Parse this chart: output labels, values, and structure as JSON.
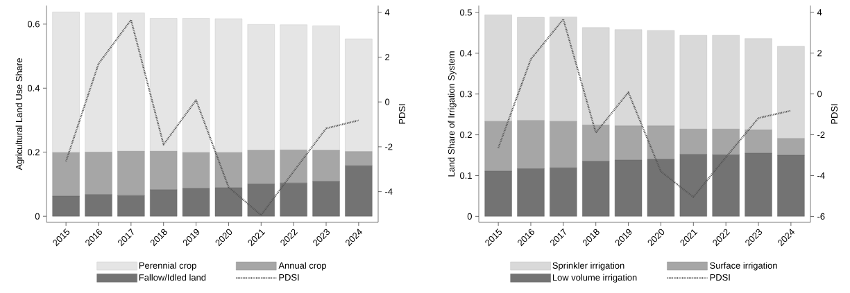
{
  "chart_data": [
    {
      "type": "bar",
      "stacked": true,
      "ylabel": "Agricultural Land Use Share",
      "y2label": "PDSI",
      "legend": "bottom",
      "categories": [
        "2015",
        "2016",
        "2017",
        "2018",
        "2019",
        "2020",
        "2021",
        "2022",
        "2023",
        "2024"
      ],
      "ylim": [
        -0.019,
        0.658
      ],
      "yticks": [
        0,
        0.2,
        0.4,
        0.6
      ],
      "y2lim": [
        -5.37,
        4.3
      ],
      "y2ticks": [
        -4,
        -2,
        0,
        2,
        4
      ],
      "series": [
        {
          "name": "Fallow/Idled land",
          "color": "#737373",
          "values": [
            0.063,
            0.068,
            0.065,
            0.083,
            0.087,
            0.089,
            0.101,
            0.104,
            0.109,
            0.158
          ]
        },
        {
          "name": "Annual crop",
          "color": "#a6a6a6",
          "values": [
            0.136,
            0.132,
            0.138,
            0.12,
            0.112,
            0.11,
            0.105,
            0.103,
            0.097,
            0.044
          ]
        },
        {
          "name": "Perennial crop",
          "color": "#e5e5e5",
          "values": [
            0.439,
            0.435,
            0.432,
            0.415,
            0.419,
            0.418,
            0.393,
            0.391,
            0.389,
            0.352
          ]
        },
        {
          "name": "PDSI",
          "type": "line",
          "axis": "y2",
          "line_style": "dotted",
          "color": "#555555",
          "values": [
            -2.65,
            1.7,
            3.66,
            -1.9,
            0.08,
            -3.8,
            -5.05,
            -3.1,
            -1.18,
            -0.82
          ]
        }
      ]
    },
    {
      "type": "bar",
      "stacked": true,
      "ylabel": "Land Share of Irrigation System",
      "y2label": "PDSI",
      "legend": "bottom",
      "categories": [
        "2015",
        "2016",
        "2017",
        "2018",
        "2019",
        "2020",
        "2021",
        "2022",
        "2023",
        "2024"
      ],
      "ylim": [
        -0.0147,
        0.517
      ],
      "yticks": [
        0,
        0.1,
        0.2,
        0.3,
        0.4,
        0.5
      ],
      "y2lim": [
        -6.29,
        4.33
      ],
      "y2ticks": [
        -6,
        -4,
        -2,
        0,
        2,
        4
      ],
      "series": [
        {
          "name": "Low volume irrigation",
          "color": "#737373",
          "values": [
            0.111,
            0.117,
            0.119,
            0.135,
            0.138,
            0.14,
            0.152,
            0.151,
            0.155,
            0.15
          ]
        },
        {
          "name": "Surface irrigation",
          "color": "#a6a6a6",
          "values": [
            0.122,
            0.118,
            0.114,
            0.089,
            0.084,
            0.082,
            0.062,
            0.063,
            0.057,
            0.041
          ]
        },
        {
          "name": "Sprinkler irrigation",
          "color": "#d9d9d9",
          "values": [
            0.261,
            0.253,
            0.256,
            0.239,
            0.236,
            0.234,
            0.23,
            0.23,
            0.224,
            0.226
          ]
        },
        {
          "name": "PDSI",
          "type": "line",
          "axis": "y2",
          "line_style": "dotted",
          "color": "#555555",
          "values": [
            -2.65,
            1.7,
            3.66,
            -1.9,
            0.08,
            -3.8,
            -5.05,
            -3.1,
            -1.18,
            -0.82
          ]
        }
      ]
    }
  ]
}
